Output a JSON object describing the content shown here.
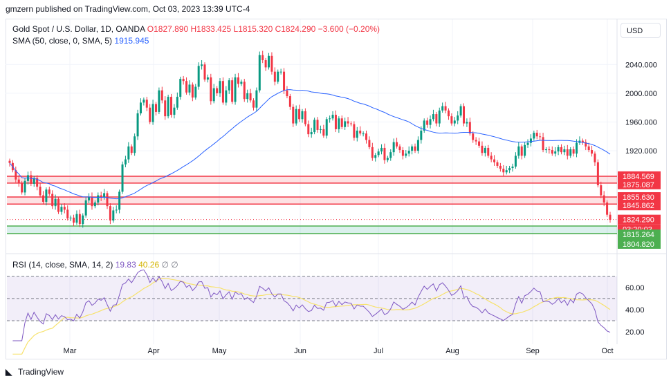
{
  "header": {
    "published": "gmzern published on TradingView.com, Oct 03, 2023 13:39 UTC-4"
  },
  "legend": {
    "title": "Gold Spot / U.S. Dollar, 1D, OANDA",
    "ohlc": "O1827.890 H1833.425 L1815.320 C1824.290 −3.600 (−0.20%)",
    "sma_label": "SMA (50, close, 0, SMA, 5)",
    "sma_value": "1915.945",
    "rsi_label": "RSI (14, close, SMA, 14, 2)",
    "rsi_value": "19.83",
    "rsi_ma_value": "40.26",
    "rsi_extra": "∅ ∅"
  },
  "currency": "USD",
  "footer": {
    "brand": "TradingView"
  },
  "colors": {
    "up": "#089981",
    "down": "#f23645",
    "sma": "#2962ff",
    "rsi": "#7e57c2",
    "rsi_ma": "#f7e26b"
  },
  "chart_data": {
    "type": "candlestick",
    "x_labels": [
      "Mar",
      "Apr",
      "May",
      "Jun",
      "Jul",
      "Aug",
      "Sep",
      "Oct"
    ],
    "price_ticks": [
      "2040.000",
      "2000.000",
      "1960.000",
      "1920.000"
    ],
    "ylim": [
      1798,
      2072
    ],
    "price_labels": [
      "1884.569",
      "1875.087",
      "1855.630",
      "1845.862",
      "1824.290",
      "03:20:03",
      "1815.264",
      "1804.820"
    ],
    "zones": [
      {
        "from": 1875.087,
        "to": 1884.569,
        "color": "red"
      },
      {
        "from": 1845.862,
        "to": 1855.63,
        "color": "red"
      },
      {
        "from": 1804.82,
        "to": 1815.264,
        "color": "green"
      }
    ],
    "last_close": 1824.29,
    "rsi_ticks": [
      "60.00",
      "40.00",
      "20.00"
    ],
    "rsi_ylim": [
      12,
      76
    ],
    "rsi_band": [
      30,
      70
    ],
    "rsi_mid": 50,
    "closes": [
      1903,
      1893,
      1880,
      1875,
      1862,
      1878,
      1886,
      1874,
      1882,
      1870,
      1858,
      1849,
      1866,
      1860,
      1843,
      1853,
      1835,
      1842,
      1838,
      1826,
      1827,
      1820,
      1832,
      1818,
      1830,
      1851,
      1856,
      1843,
      1848,
      1858,
      1855,
      1861,
      1843,
      1823,
      1837,
      1838,
      1863,
      1901,
      1908,
      1926,
      1917,
      1940,
      1972,
      1987,
      1991,
      1980,
      1960,
      1985,
      1974,
      2004,
      1990,
      1968,
      1995,
      1970,
      1980,
      1995,
      2020,
      2017,
      2001,
      2012,
      1994,
      2009,
      2038,
      2040,
      2019,
      2022,
      1989,
      2007,
      2000,
      2017,
      1987,
      2004,
      2018,
      1988,
      2022,
      2013,
      2016,
      1992,
      2000,
      1990,
      1980,
      2004,
      2053,
      2046,
      2036,
      2052,
      2030,
      2016,
      2030,
      2030,
      2004,
      1996,
      1981,
      1958,
      1978,
      1964,
      1975,
      1957,
      1943,
      1946,
      1963,
      1949,
      1950,
      1941,
      1964,
      1965,
      1970,
      1950,
      1965,
      1953,
      1961,
      1958,
      1957,
      1938,
      1948,
      1944,
      1944,
      1935,
      1925,
      1910,
      1914,
      1919,
      1924,
      1907,
      1910,
      1918,
      1932,
      1926,
      1921,
      1913,
      1916,
      1920,
      1926,
      1920,
      1935,
      1948,
      1962,
      1956,
      1964,
      1971,
      1958,
      1976,
      1982,
      1976,
      1968,
      1958,
      1962,
      1969,
      1982,
      1958,
      1960,
      1944,
      1935,
      1933,
      1927,
      1917,
      1924,
      1913,
      1908,
      1904,
      1899,
      1895,
      1890,
      1893,
      1896,
      1898,
      1913,
      1926,
      1913,
      1928,
      1931,
      1937,
      1945,
      1940,
      1939,
      1921,
      1922,
      1921,
      1916,
      1919,
      1925,
      1918,
      1922,
      1913,
      1922,
      1916,
      1931,
      1934,
      1932,
      1926,
      1921,
      1916,
      1904,
      1872,
      1858,
      1848,
      1831,
      1824
    ]
  }
}
